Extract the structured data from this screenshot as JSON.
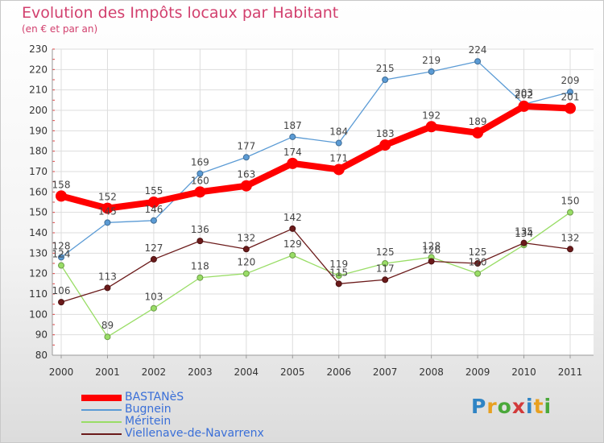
{
  "header": {
    "title": "Evolution des Impôts locaux par Habitant",
    "subtitle": "(en € et par an)"
  },
  "logo": {
    "letters": [
      "P",
      "r",
      "o",
      "x",
      "i",
      "t",
      "i"
    ],
    "colors": [
      "#2f84c4",
      "#e8a020",
      "#4aa83a",
      "#d23a3a",
      "#2f84c4",
      "#e8a020",
      "#4aa83a"
    ]
  },
  "chart_data": {
    "type": "line",
    "title": "Evolution des Impôts locaux par Habitant",
    "subtitle": "(en € et par an)",
    "xlabel": "",
    "ylabel": "",
    "x": [
      "2000",
      "2001",
      "2002",
      "2003",
      "2004",
      "2005",
      "2006",
      "2007",
      "2008",
      "2009",
      "2010",
      "2011"
    ],
    "y_ticks": [
      80,
      90,
      100,
      110,
      120,
      130,
      140,
      150,
      160,
      170,
      180,
      190,
      200,
      210,
      220,
      230
    ],
    "ylim": [
      80,
      230
    ],
    "grid": true,
    "legend_position": "bottom-left",
    "series": [
      {
        "name": "BASTANèS",
        "color": "#ff0000",
        "emphasis": true,
        "values": [
          158,
          152,
          155,
          160,
          163,
          174,
          171,
          183,
          192,
          189,
          202,
          201
        ]
      },
      {
        "name": "Bugnein",
        "color": "#5b9bd5",
        "emphasis": false,
        "values": [
          128,
          145,
          146,
          169,
          177,
          187,
          184,
          215,
          219,
          224,
          203,
          209
        ]
      },
      {
        "name": "Méritein",
        "color": "#99dd66",
        "emphasis": false,
        "values": [
          124,
          89,
          103,
          118,
          120,
          129,
          119,
          125,
          128,
          120,
          134,
          150
        ]
      },
      {
        "name": "Viellenave-de-Navarrenx",
        "color": "#6b1a1a",
        "emphasis": false,
        "values": [
          106,
          113,
          127,
          136,
          132,
          142,
          115,
          117,
          126,
          125,
          135,
          132
        ]
      }
    ]
  }
}
